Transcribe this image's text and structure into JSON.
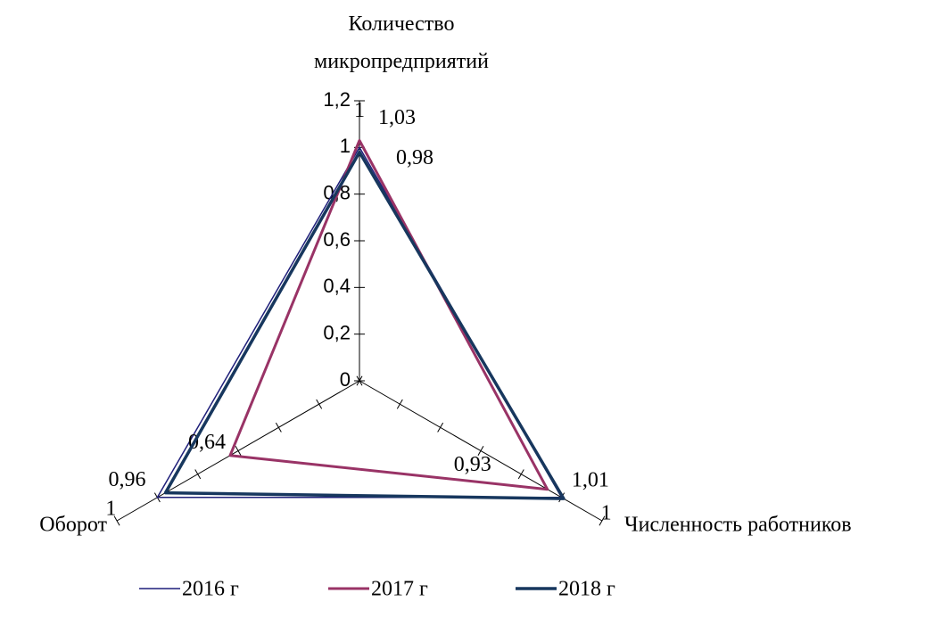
{
  "chart_data": {
    "type": "radar",
    "categories": [
      "Количество микропредприятий",
      "Численность работников",
      "Оборот"
    ],
    "series": [
      {
        "name": "2016 г",
        "color": "#1f1f7a",
        "values": [
          1,
          1,
          1
        ],
        "value_labels": [
          "1",
          "1",
          "1"
        ]
      },
      {
        "name": "2017 г",
        "color": "#993366",
        "values": [
          1.03,
          0.93,
          0.64
        ],
        "value_labels": [
          "1,03",
          "0,93",
          "0,64"
        ]
      },
      {
        "name": "2018 г",
        "color": "#17375e",
        "values": [
          0.98,
          1.01,
          0.96
        ],
        "value_labels": [
          "0,98",
          "1,01",
          "0,96"
        ]
      }
    ],
    "ylim": [
      0,
      1.2
    ],
    "yticks": [
      {
        "value": 0,
        "label": "0"
      },
      {
        "value": 0.2,
        "label": "0,2"
      },
      {
        "value": 0.4,
        "label": "0,4"
      },
      {
        "value": 0.6,
        "label": "0,6"
      },
      {
        "value": 0.8,
        "label": "0,8"
      },
      {
        "value": 1,
        "label": "1"
      },
      {
        "value": 1.2,
        "label": "1,2"
      }
    ]
  }
}
